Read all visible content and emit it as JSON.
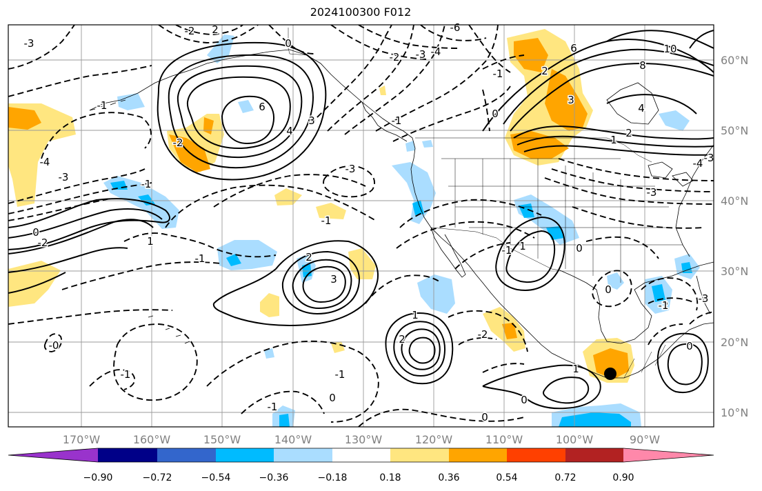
{
  "title": "2024100300 F012",
  "longitude_labels": [
    "170°W",
    "160°W",
    "150°W",
    "140°W",
    "130°W",
    "120°W",
    "110°W",
    "100°W",
    "90°W"
  ],
  "latitude_labels": [
    "60°N",
    "50°N",
    "40°N",
    "30°N",
    "20°N",
    "10°N"
  ],
  "colorbar": {
    "labels": [
      "−0.90",
      "−0.72",
      "−0.54",
      "−0.36",
      "−0.18",
      "0.18",
      "0.36",
      "0.54",
      "0.72",
      "0.90"
    ],
    "colors": [
      "#9933cc",
      "#000088",
      "#3366cc",
      "#00bbff",
      "#aaddff",
      "#ffffff",
      "#ffe680",
      "#ffa500",
      "#ff4000",
      "#b22222",
      "#ff88aa"
    ]
  },
  "contour_labels": [
    {
      "text": "-2"
    },
    {
      "text": "2"
    },
    {
      "text": "-3"
    },
    {
      "text": "0"
    },
    {
      "text": "6"
    },
    {
      "text": "4"
    },
    {
      "text": "3"
    },
    {
      "text": "-1"
    },
    {
      "text": "-2"
    },
    {
      "text": "-4"
    },
    {
      "text": "-3"
    },
    {
      "text": "-1"
    },
    {
      "text": "0"
    },
    {
      "text": "-2"
    },
    {
      "text": "-6"
    },
    {
      "text": "-4"
    },
    {
      "text": "-3"
    },
    {
      "text": "-2"
    },
    {
      "text": "6"
    },
    {
      "text": "10"
    },
    {
      "text": "8"
    },
    {
      "text": "4"
    },
    {
      "text": "2"
    },
    {
      "text": "1"
    },
    {
      "text": "-3"
    },
    {
      "text": "-4"
    },
    {
      "text": "-3"
    },
    {
      "text": "-1"
    },
    {
      "text": "0"
    },
    {
      "text": "2"
    },
    {
      "text": "3"
    },
    {
      "text": "-1"
    },
    {
      "text": "0"
    },
    {
      "text": "2"
    },
    {
      "text": "3"
    },
    {
      "text": "-1"
    },
    {
      "text": "-3"
    },
    {
      "text": "-1"
    },
    {
      "text": "1"
    },
    {
      "text": "-0"
    },
    {
      "text": "-1"
    },
    {
      "text": "-1"
    },
    {
      "text": "-1"
    },
    {
      "text": "0"
    },
    {
      "text": "0"
    },
    {
      "text": "1"
    },
    {
      "text": "2"
    },
    {
      "text": "-2"
    },
    {
      "text": "1"
    },
    {
      "text": "0"
    },
    {
      "text": "0"
    },
    {
      "text": "-1"
    },
    {
      "text": "0"
    },
    {
      "text": "1"
    },
    {
      "text": "-2"
    },
    {
      "text": "-3"
    },
    {
      "text": "-1"
    }
  ]
}
